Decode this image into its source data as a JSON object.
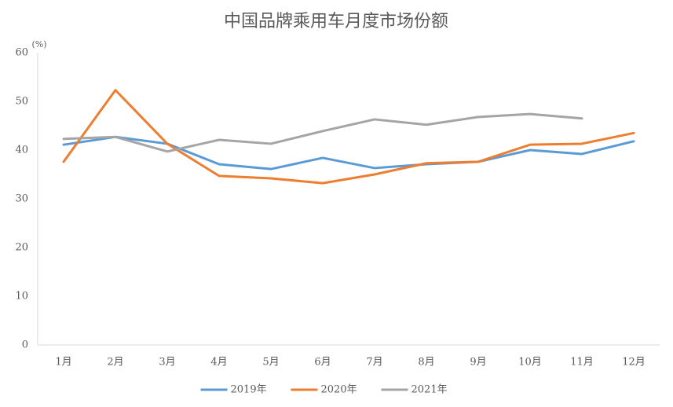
{
  "chart_data": {
    "type": "line",
    "title": "中国品牌乘用车月度市场份额",
    "y_unit": "(%)",
    "categories": [
      "1月",
      "2月",
      "3月",
      "4月",
      "5月",
      "6月",
      "7月",
      "8月",
      "9月",
      "10月",
      "11月",
      "12月"
    ],
    "series": [
      {
        "name": "2019年",
        "color": "#5b9bd5",
        "values": [
          41.1,
          42.7,
          41.3,
          37.1,
          36.1,
          38.4,
          36.3,
          37.1,
          37.6,
          40.0,
          39.2,
          41.8
        ]
      },
      {
        "name": "2020年",
        "color": "#ed7d31",
        "values": [
          37.6,
          52.3,
          41.3,
          34.7,
          34.2,
          33.2,
          35.0,
          37.3,
          37.6,
          41.1,
          41.3,
          43.5
        ]
      },
      {
        "name": "2021年",
        "color": "#a5a5a5",
        "values": [
          42.3,
          42.7,
          39.7,
          42.1,
          41.3,
          43.9,
          46.3,
          45.2,
          46.8,
          47.4,
          46.5,
          null
        ]
      }
    ],
    "ylim": [
      0,
      60
    ],
    "yticks": [
      0,
      10,
      20,
      30,
      40,
      50,
      60
    ],
    "grid": false,
    "legend": "bottom"
  }
}
